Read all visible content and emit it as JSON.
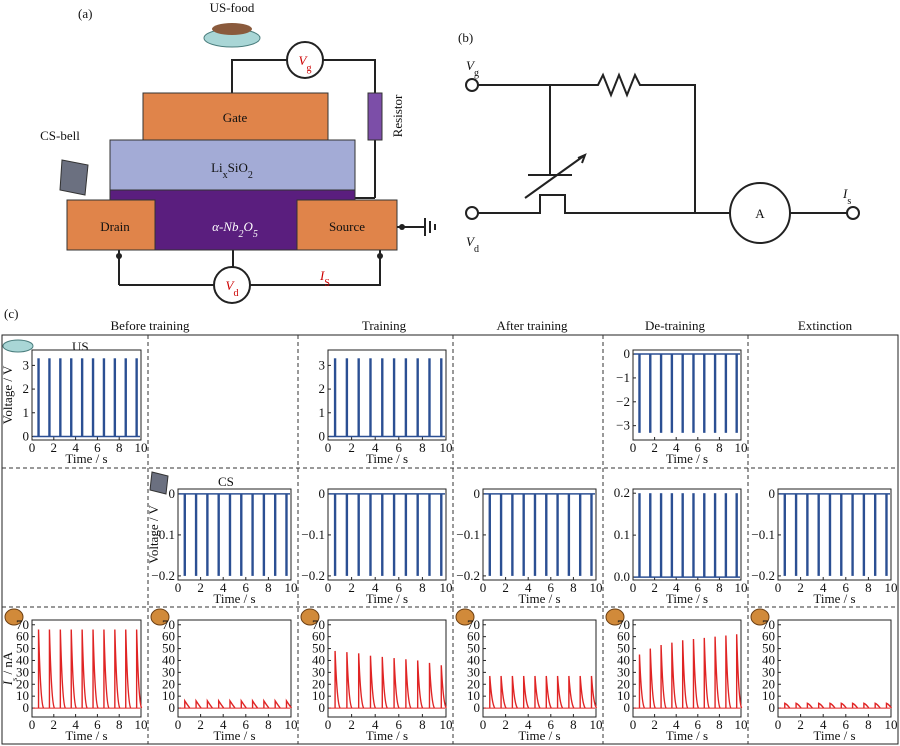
{
  "panel_a": {
    "label": "(a)",
    "us_food": "US-food",
    "cs_bell": "CS-bell",
    "vg": {
      "symbol": "V",
      "sub": "g"
    },
    "resistor": "Resistor",
    "gate": "Gate",
    "electrolyte": [
      "Li",
      "x",
      "SiO",
      "2"
    ],
    "channel": [
      "α-Nb",
      "2",
      "O",
      "5"
    ],
    "drain": "Drain",
    "source": "Source",
    "vd": {
      "symbol": "V",
      "sub": "d"
    },
    "is": {
      "symbol": "I",
      "sub": "S"
    }
  },
  "panel_b": {
    "label": "(b)",
    "vg": {
      "symbol": "V",
      "sub": "g"
    },
    "vd": {
      "symbol": "V",
      "sub": "d"
    },
    "is": {
      "symbol": "I",
      "sub": "s"
    },
    "ammeter": "A"
  },
  "panel_c": {
    "label": "(c)",
    "columns": [
      "Before training",
      "Training",
      "After training",
      "De-training",
      "Extinction"
    ],
    "row_labels": [
      "US",
      "CS"
    ],
    "charts": [
      {
        "type": "pulse",
        "color": "#2b4f93",
        "x": [
          0.6,
          1.6,
          2.6,
          3.6,
          4.6,
          5.6,
          6.6,
          7.6,
          8.6,
          9.6
        ],
        "values": [
          3.3,
          3.3,
          3.3,
          3.3,
          3.3,
          3.3,
          3.3,
          3.3,
          3.3,
          3.3
        ],
        "xlim": [
          0,
          10
        ],
        "xticks": [
          0,
          2,
          4,
          6,
          8,
          10
        ],
        "ylim": [
          -0.15,
          3.65
        ],
        "yticks": [
          0,
          1,
          2,
          3
        ],
        "xlabel": "Time / s",
        "ylabel": "Voltage / V"
      },
      {
        "type": "pulse",
        "color": "#2b4f93",
        "x": [
          0.6,
          1.6,
          2.6,
          3.6,
          4.6,
          5.6,
          6.6,
          7.6,
          8.6,
          9.6
        ],
        "values": [
          3.3,
          3.3,
          3.3,
          3.3,
          3.3,
          3.3,
          3.3,
          3.3,
          3.3,
          3.3
        ],
        "xlim": [
          0,
          10
        ],
        "xticks": [
          0,
          2,
          4,
          6,
          8,
          10
        ],
        "ylim": [
          -0.15,
          3.65
        ],
        "yticks": [
          0,
          1,
          2,
          3
        ],
        "xlabel": "Time / s"
      },
      {
        "type": "pulse",
        "color": "#2b4f93",
        "x": [
          0.6,
          1.6,
          2.6,
          3.6,
          4.6,
          5.6,
          6.6,
          7.6,
          8.6,
          9.6
        ],
        "values": [
          -3.3,
          -3.3,
          -3.3,
          -3.3,
          -3.3,
          -3.3,
          -3.3,
          -3.3,
          -3.3,
          -3.3
        ],
        "xlim": [
          0,
          10
        ],
        "xticks": [
          0,
          2,
          4,
          6,
          8,
          10
        ],
        "ylim": [
          -3.6,
          0.17
        ],
        "yticks": [
          0,
          {
            "value": -1,
            "label": "−1"
          },
          {
            "value": -2,
            "label": "−2"
          },
          {
            "value": -3,
            "label": "−3"
          }
        ],
        "xlabel": "Time / s"
      },
      {
        "type": "pulse",
        "color": "#2b4f93",
        "x": [
          0.6,
          1.6,
          2.6,
          3.6,
          4.6,
          5.6,
          6.6,
          7.6,
          8.6,
          9.6
        ],
        "values": [
          -0.2,
          -0.2,
          -0.2,
          -0.2,
          -0.2,
          -0.2,
          -0.2,
          -0.2,
          -0.2,
          -0.2
        ],
        "xlim": [
          0,
          10
        ],
        "xticks": [
          0,
          2,
          4,
          6,
          8,
          10
        ],
        "ylim": [
          -0.21,
          0.012
        ],
        "yticks": [
          0,
          {
            "value": -0.1,
            "label": "−0.1"
          },
          {
            "value": -0.2,
            "label": "−0.2"
          }
        ],
        "xlabel": "Time / s",
        "ylabel": "Voltage / V"
      },
      {
        "type": "pulse",
        "color": "#2b4f93",
        "x": [
          0.6,
          1.6,
          2.6,
          3.6,
          4.6,
          5.6,
          6.6,
          7.6,
          8.6,
          9.6
        ],
        "values": [
          -0.2,
          -0.2,
          -0.2,
          -0.2,
          -0.2,
          -0.2,
          -0.2,
          -0.2,
          -0.2,
          -0.2
        ],
        "xlim": [
          0,
          10
        ],
        "xticks": [
          0,
          2,
          4,
          6,
          8,
          10
        ],
        "ylim": [
          -0.21,
          0.012
        ],
        "yticks": [
          0,
          {
            "value": -0.1,
            "label": "−0.1"
          },
          {
            "value": -0.2,
            "label": "−0.2"
          }
        ],
        "xlabel": "Time / s"
      },
      {
        "type": "pulse",
        "color": "#2b4f93",
        "x": [
          0.6,
          1.6,
          2.6,
          3.6,
          4.6,
          5.6,
          6.6,
          7.6,
          8.6,
          9.6
        ],
        "values": [
          -0.2,
          -0.2,
          -0.2,
          -0.2,
          -0.2,
          -0.2,
          -0.2,
          -0.2,
          -0.2,
          -0.2
        ],
        "xlim": [
          0,
          10
        ],
        "xticks": [
          0,
          2,
          4,
          6,
          8,
          10
        ],
        "ylim": [
          -0.21,
          0.012
        ],
        "yticks": [
          0,
          {
            "value": -0.1,
            "label": "−0.1"
          },
          {
            "value": -0.2,
            "label": "−0.2"
          }
        ],
        "xlabel": "Time / s"
      },
      {
        "type": "pulse",
        "color": "#2b4f93",
        "x": [
          0.6,
          1.6,
          2.6,
          3.6,
          4.6,
          5.6,
          6.6,
          7.6,
          8.6,
          9.6
        ],
        "values": [
          0.2,
          0.2,
          0.2,
          0.2,
          0.2,
          0.2,
          0.2,
          0.2,
          0.2,
          0.2
        ],
        "xlim": [
          0,
          10
        ],
        "xticks": [
          0,
          2,
          4,
          6,
          8,
          10
        ],
        "ylim": [
          -0.007,
          0.21
        ],
        "yticks": [
          {
            "value": 0.2,
            "label": "0.2"
          },
          {
            "value": 0.1,
            "label": "0.1"
          },
          {
            "value": 0,
            "label": "0.0"
          }
        ],
        "xlabel": "Time / s"
      },
      {
        "type": "pulse",
        "color": "#2b4f93",
        "x": [
          0.6,
          1.6,
          2.6,
          3.6,
          4.6,
          5.6,
          6.6,
          7.6,
          8.6,
          9.6
        ],
        "values": [
          -0.2,
          -0.2,
          -0.2,
          -0.2,
          -0.2,
          -0.2,
          -0.2,
          -0.2,
          -0.2,
          -0.2
        ],
        "xlim": [
          0,
          10
        ],
        "xticks": [
          0,
          2,
          4,
          6,
          8,
          10
        ],
        "ylim": [
          -0.21,
          0.012
        ],
        "yticks": [
          0,
          {
            "value": -0.1,
            "label": "−0.1"
          },
          {
            "value": -0.2,
            "label": "−0.2"
          }
        ],
        "xlabel": "Time / s"
      },
      {
        "type": "spike",
        "color": "#e02424",
        "x": [
          0.6,
          1.6,
          2.6,
          3.6,
          4.6,
          5.6,
          6.6,
          7.6,
          8.6,
          9.6
        ],
        "values": [
          66,
          66,
          66,
          66,
          66,
          66,
          66,
          66,
          66,
          66
        ],
        "xlim": [
          0,
          10
        ],
        "xticks": [
          0,
          2,
          4,
          6,
          8,
          10
        ],
        "ylim": [
          -7.5,
          74
        ],
        "yticks": [
          0,
          10,
          20,
          30,
          40,
          50,
          60,
          70
        ],
        "xlabel": "Time / s",
        "ylabel": {
          "symbol": "I",
          "sub": "s",
          "unit": " / nA"
        }
      },
      {
        "type": "spike",
        "color": "#e02424",
        "x": [
          0.6,
          1.6,
          2.6,
          3.6,
          4.6,
          5.6,
          6.6,
          7.6,
          8.6,
          9.6
        ],
        "values": [
          6,
          6,
          6,
          6,
          6,
          6,
          6,
          6,
          6,
          6
        ],
        "xlim": [
          0,
          10
        ],
        "xticks": [
          0,
          2,
          4,
          6,
          8,
          10
        ],
        "ylim": [
          -7.5,
          74
        ],
        "yticks": [
          0,
          10,
          20,
          30,
          40,
          50,
          60,
          70
        ],
        "xlabel": "Time / s"
      },
      {
        "type": "spike",
        "color": "#e02424",
        "x": [
          0.6,
          1.6,
          2.6,
          3.6,
          4.6,
          5.6,
          6.6,
          7.6,
          8.6,
          9.6
        ],
        "values": [
          48,
          47,
          46,
          44,
          43,
          42,
          41,
          40,
          38,
          36
        ],
        "xlim": [
          0,
          10
        ],
        "xticks": [
          0,
          2,
          4,
          6,
          8,
          10
        ],
        "ylim": [
          -7.5,
          74
        ],
        "yticks": [
          0,
          10,
          20,
          30,
          40,
          50,
          60,
          70
        ],
        "xlabel": "Time / s"
      },
      {
        "type": "spike",
        "color": "#e02424",
        "x": [
          0.6,
          1.6,
          2.6,
          3.6,
          4.6,
          5.6,
          6.6,
          7.6,
          8.6,
          9.6
        ],
        "values": [
          27,
          27,
          27,
          27,
          27,
          27,
          27,
          27,
          27,
          27
        ],
        "xlim": [
          0,
          10
        ],
        "xticks": [
          0,
          2,
          4,
          6,
          8,
          10
        ],
        "ylim": [
          -7.5,
          74
        ],
        "yticks": [
          0,
          10,
          20,
          30,
          40,
          50,
          60,
          70
        ],
        "xlabel": "Time / s"
      },
      {
        "type": "spike",
        "color": "#e02424",
        "x": [
          0.6,
          1.6,
          2.6,
          3.6,
          4.6,
          5.6,
          6.6,
          7.6,
          8.6,
          9.6
        ],
        "values": [
          45,
          50,
          53,
          55,
          57,
          58,
          59,
          60,
          61,
          62
        ],
        "xlim": [
          0,
          10
        ],
        "xticks": [
          0,
          2,
          4,
          6,
          8,
          10
        ],
        "ylim": [
          -7.5,
          74
        ],
        "yticks": [
          0,
          10,
          20,
          30,
          40,
          50,
          60,
          70
        ],
        "xlabel": "Time / s"
      },
      {
        "type": "spike",
        "color": "#e02424",
        "x": [
          0.6,
          1.6,
          2.6,
          3.6,
          4.6,
          5.6,
          6.6,
          7.6,
          8.6,
          9.6
        ],
        "values": [
          4,
          4,
          4,
          4,
          4,
          4,
          4,
          4,
          4,
          4
        ],
        "xlim": [
          0,
          10
        ],
        "xticks": [
          0,
          2,
          4,
          6,
          8,
          10
        ],
        "ylim": [
          -7.5,
          74
        ],
        "yticks": [
          0,
          10,
          20,
          30,
          40,
          50,
          60,
          70
        ],
        "xlabel": "Time / s"
      }
    ]
  }
}
